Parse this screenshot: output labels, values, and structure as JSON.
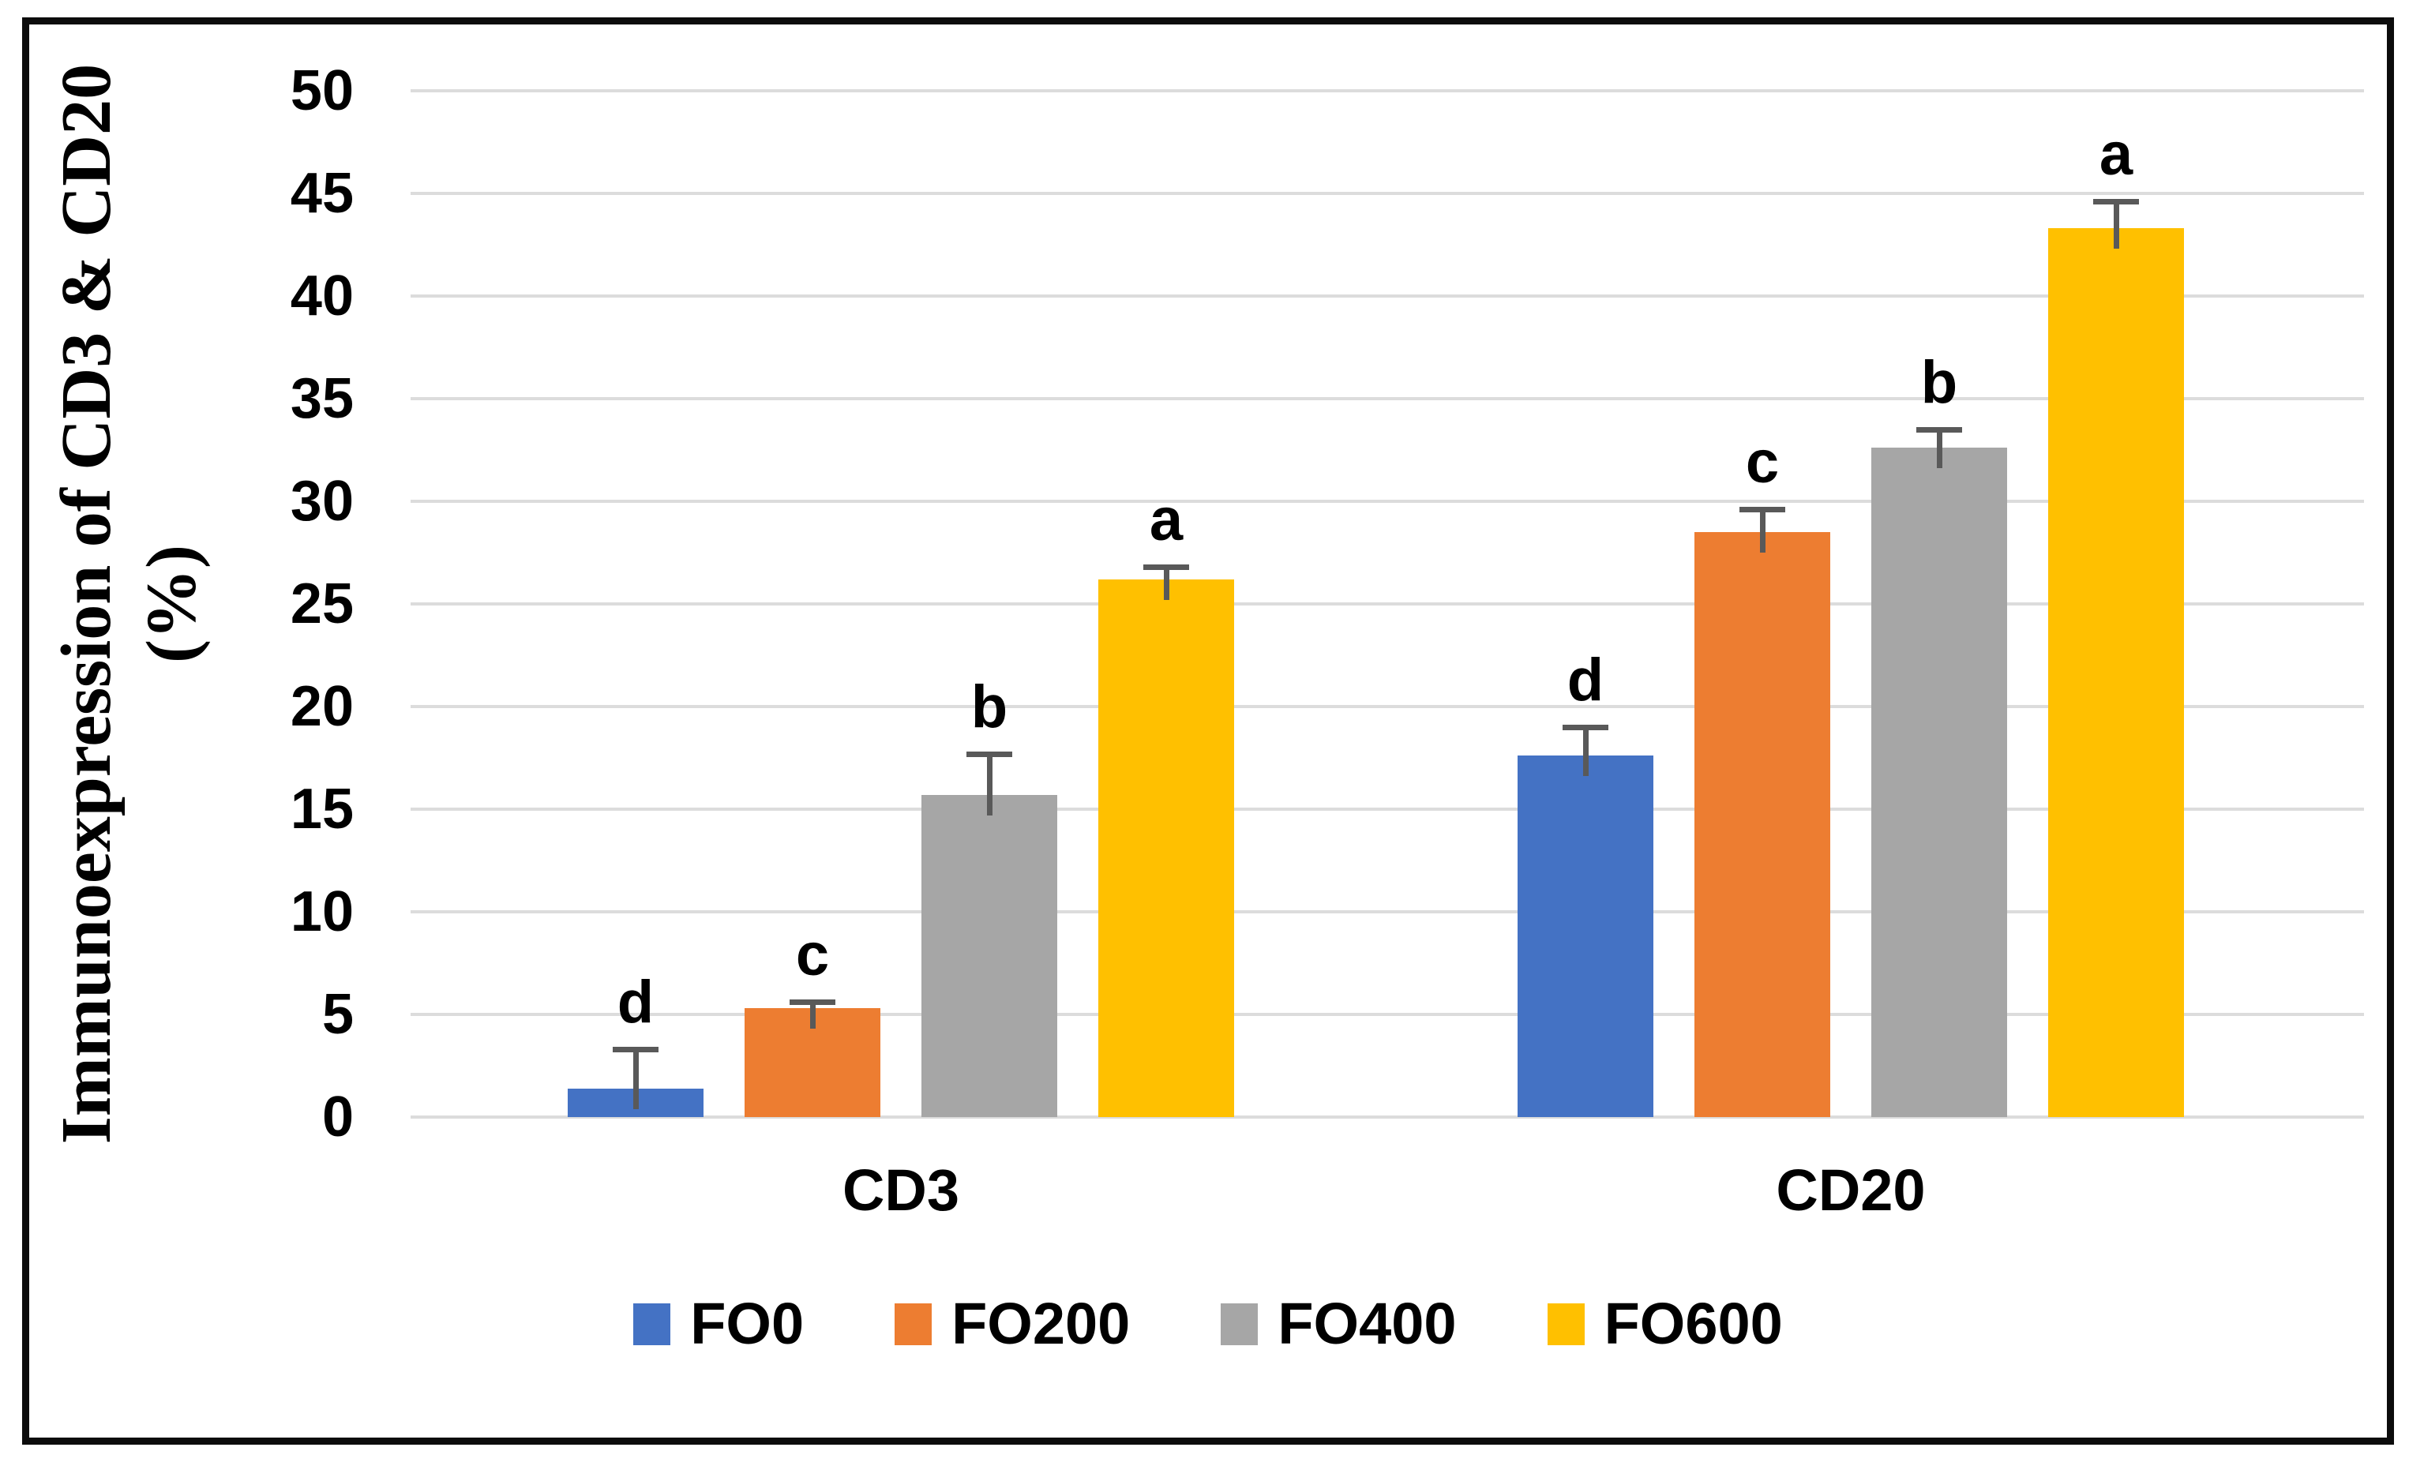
{
  "chart_data": {
    "type": "bar",
    "title": "",
    "ylabel": "Immunoexpression of CD3 & CD20",
    "ylabel_unit": "(%)",
    "xlabel": "",
    "ylim": [
      0,
      50
    ],
    "y_tick_step": 5,
    "y_ticks": [
      0,
      5,
      10,
      15,
      20,
      25,
      30,
      35,
      40,
      45,
      50
    ],
    "categories": [
      "CD3",
      "CD20"
    ],
    "series": [
      {
        "name": "FO0",
        "color": "#4472C4",
        "values": [
          1.4,
          17.6
        ],
        "errors": [
          1.9,
          1.4
        ],
        "sig_letters": [
          "d",
          "d"
        ]
      },
      {
        "name": "FO200",
        "color": "#ED7D31",
        "values": [
          5.3,
          28.5
        ],
        "errors": [
          0.3,
          1.1
        ],
        "sig_letters": [
          "c",
          "c"
        ]
      },
      {
        "name": "FO400",
        "color": "#A6A6A6",
        "values": [
          15.7,
          32.6
        ],
        "errors": [
          2.0,
          0.9
        ],
        "sig_letters": [
          "b",
          "b"
        ]
      },
      {
        "name": "FO600",
        "color": "#FFC000",
        "values": [
          26.2,
          43.3
        ],
        "errors": [
          0.6,
          1.3
        ],
        "sig_letters": [
          "a",
          "a"
        ]
      }
    ],
    "legend_position": "bottom",
    "grid": "horizontal",
    "gridline_color": "#DCDCDC",
    "error_bar_color": "#595959",
    "frame_color": "#0C0C0C"
  }
}
